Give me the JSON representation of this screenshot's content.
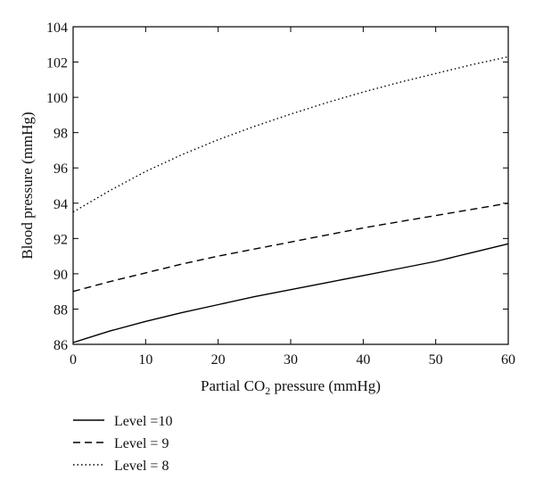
{
  "chart_data": {
    "type": "line",
    "title": "",
    "xlabel_main": "Partial CO",
    "xlabel_sub": "2",
    "xlabel_rest": " pressure (mmHg)",
    "ylabel": "Blood pressure (mmHg)",
    "xlim": [
      0,
      60
    ],
    "ylim": [
      86,
      104
    ],
    "xticks": [
      0,
      10,
      20,
      30,
      40,
      50,
      60
    ],
    "yticks": [
      86,
      88,
      90,
      92,
      94,
      96,
      98,
      100,
      102,
      104
    ],
    "grid": false,
    "legend_position": "bottom-left, below plot",
    "series": [
      {
        "name": "Level =10",
        "style": "solid",
        "color": "#000000",
        "x": [
          0,
          5,
          10,
          15,
          20,
          25,
          30,
          35,
          40,
          45,
          50,
          55,
          60
        ],
        "y": [
          86.1,
          86.75,
          87.3,
          87.8,
          88.25,
          88.7,
          89.1,
          89.5,
          89.9,
          90.3,
          90.7,
          91.2,
          91.7
        ]
      },
      {
        "name": "Level = 9",
        "style": "dashed",
        "color": "#000000",
        "x": [
          0,
          5,
          10,
          15,
          20,
          25,
          30,
          35,
          40,
          45,
          50,
          55,
          60
        ],
        "y": [
          89.0,
          89.55,
          90.05,
          90.55,
          91.0,
          91.4,
          91.8,
          92.2,
          92.6,
          92.95,
          93.3,
          93.65,
          94.0
        ]
      },
      {
        "name": "Level = 8",
        "style": "dotted",
        "color": "#000000",
        "x": [
          0,
          5,
          10,
          15,
          20,
          25,
          30,
          35,
          40,
          45,
          50,
          55,
          60
        ],
        "y": [
          93.5,
          94.7,
          95.8,
          96.75,
          97.6,
          98.35,
          99.05,
          99.7,
          100.3,
          100.85,
          101.35,
          101.85,
          102.3
        ]
      }
    ]
  }
}
